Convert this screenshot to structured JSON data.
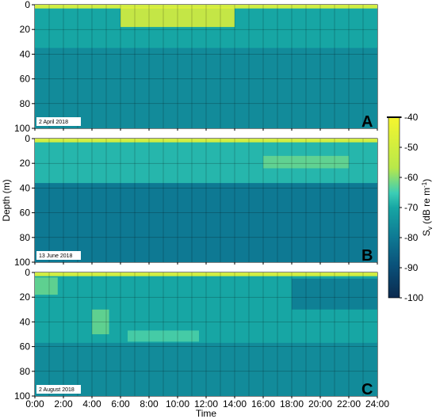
{
  "chart_data": [
    {
      "type": "heatmap",
      "panel_letter": "A",
      "date_label": "2 April 2018",
      "xlabel": "",
      "ylabel": "",
      "ylim": [
        100,
        0
      ],
      "y_ticks": [
        "0",
        "20",
        "40",
        "60",
        "80",
        "100"
      ],
      "x_ticks": [
        "0:00",
        "2:00",
        "4:00",
        "6:00",
        "8:00",
        "10:00",
        "12:00",
        "14:00",
        "16:00",
        "18:00",
        "20:00",
        "22:00",
        "24:00"
      ],
      "show_x_tick_labels": false,
      "grid": true,
      "layers": [
        {
          "from_depth": 0,
          "to_depth": 3,
          "value": -62
        },
        {
          "from_depth": 3,
          "to_depth": 35,
          "value": -70
        },
        {
          "from_depth": 35,
          "to_depth": 100,
          "value": -76
        }
      ],
      "features": [
        {
          "start_h": 0.0,
          "end_h": 24.0,
          "top_m": 0,
          "bottom_m": 3,
          "value": -45
        },
        {
          "start_h": 6.0,
          "end_h": 14.0,
          "top_m": 2,
          "bottom_m": 18,
          "value": -45
        }
      ]
    },
    {
      "type": "heatmap",
      "panel_letter": "B",
      "date_label": "13 June 2018",
      "xlabel": "",
      "ylabel": "Depth (m)",
      "ylim": [
        100,
        0
      ],
      "y_ticks": [
        "0",
        "20",
        "40",
        "60",
        "80",
        "100"
      ],
      "x_ticks": [
        "0:00",
        "2:00",
        "4:00",
        "6:00",
        "8:00",
        "10:00",
        "12:00",
        "14:00",
        "16:00",
        "18:00",
        "20:00",
        "22:00",
        "24:00"
      ],
      "show_x_tick_labels": false,
      "grid": true,
      "layers": [
        {
          "from_depth": 0,
          "to_depth": 3,
          "value": -62
        },
        {
          "from_depth": 3,
          "to_depth": 36,
          "value": -68
        },
        {
          "from_depth": 36,
          "to_depth": 100,
          "value": -80
        }
      ],
      "features": [
        {
          "start_h": 0.0,
          "end_h": 24.0,
          "top_m": 0,
          "bottom_m": 3,
          "value": -45
        },
        {
          "start_h": 16.0,
          "end_h": 22.0,
          "top_m": 14,
          "bottom_m": 24,
          "value": -62
        }
      ]
    },
    {
      "type": "heatmap",
      "panel_letter": "C",
      "date_label": "2 August 2018",
      "xlabel": "Time",
      "ylabel": "",
      "ylim": [
        100,
        0
      ],
      "y_ticks": [
        "0",
        "20",
        "40",
        "60",
        "80",
        "100"
      ],
      "x_ticks": [
        "0:00",
        "2:00",
        "4:00",
        "6:00",
        "8:00",
        "10:00",
        "12:00",
        "14:00",
        "16:00",
        "18:00",
        "20:00",
        "22:00",
        "24:00"
      ],
      "show_x_tick_labels": true,
      "grid": true,
      "layers": [
        {
          "from_depth": 0,
          "to_depth": 3,
          "value": -62
        },
        {
          "from_depth": 3,
          "to_depth": 57,
          "value": -70
        },
        {
          "from_depth": 57,
          "to_depth": 100,
          "value": -76
        }
      ],
      "features": [
        {
          "start_h": 0.0,
          "end_h": 24.0,
          "top_m": 0,
          "bottom_m": 3,
          "value": -45
        },
        {
          "start_h": 0.0,
          "end_h": 1.6,
          "top_m": 4,
          "bottom_m": 18,
          "value": -62
        },
        {
          "start_h": 4.0,
          "end_h": 5.2,
          "top_m": 30,
          "bottom_m": 50,
          "value": -62
        },
        {
          "start_h": 6.5,
          "end_h": 11.5,
          "top_m": 47,
          "bottom_m": 56,
          "value": -64
        },
        {
          "start_h": 18.0,
          "end_h": 24.0,
          "top_m": 5,
          "bottom_m": 30,
          "value": -80
        }
      ]
    }
  ],
  "colorbar": {
    "label": "S",
    "label_subscript": "v",
    "label_unit": " (dB re m",
    "label_unit_superscript": "-1",
    "label_close": ")",
    "min": -100,
    "max": -40,
    "ticks": [
      "-40",
      "-50",
      "-60",
      "-70",
      "-80",
      "-90",
      "-100"
    ],
    "colors": [
      "#0b2a4e",
      "#0a4f78",
      "#0e7893",
      "#17a6a4",
      "#3bcdb6",
      "#b8e84a",
      "#f5f52e"
    ]
  }
}
